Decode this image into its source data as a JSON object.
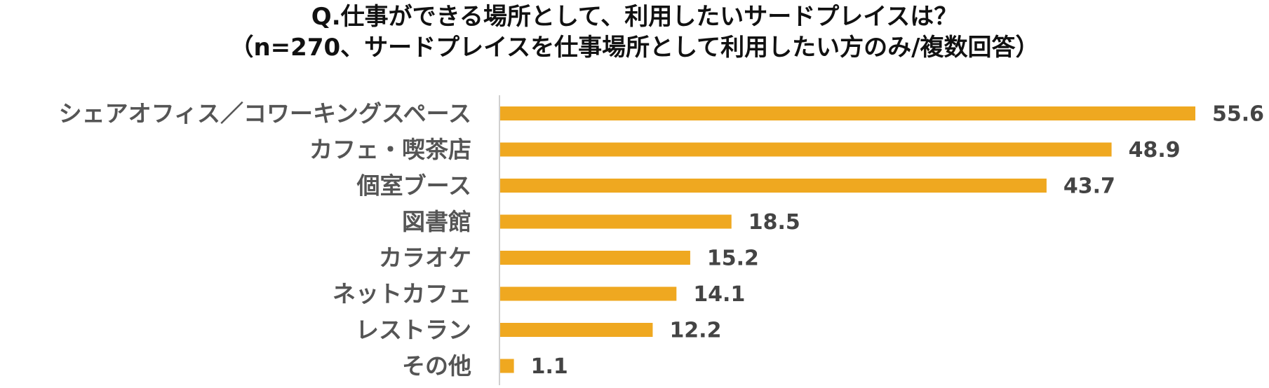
{
  "chart_data": {
    "type": "bar",
    "orientation": "horizontal",
    "title": "Q.仕事ができる場所として、利用したいサードプレイスは？",
    "subtitle": "（n=270、サードプレイスを仕事場所として利用したい方のみ/複数回答）",
    "categories": [
      "シェアオフィス／コワーキングスペース",
      "カフェ・喫茶店",
      "個室ブース",
      "図書館",
      "カラオケ",
      "ネットカフェ",
      "レストラン",
      "その他"
    ],
    "values": [
      55.6,
      48.9,
      43.7,
      18.5,
      15.2,
      14.1,
      12.2,
      1.1
    ],
    "value_labels": [
      "55.6",
      "48.9",
      "43.7",
      "18.5",
      "15.2",
      "14.1",
      "12.2",
      "1.1"
    ],
    "xlim": [
      0,
      60
    ],
    "grid": false,
    "legend": "none",
    "colors": {
      "bar": "#EFA820",
      "axis": "#D0D0D0"
    }
  }
}
